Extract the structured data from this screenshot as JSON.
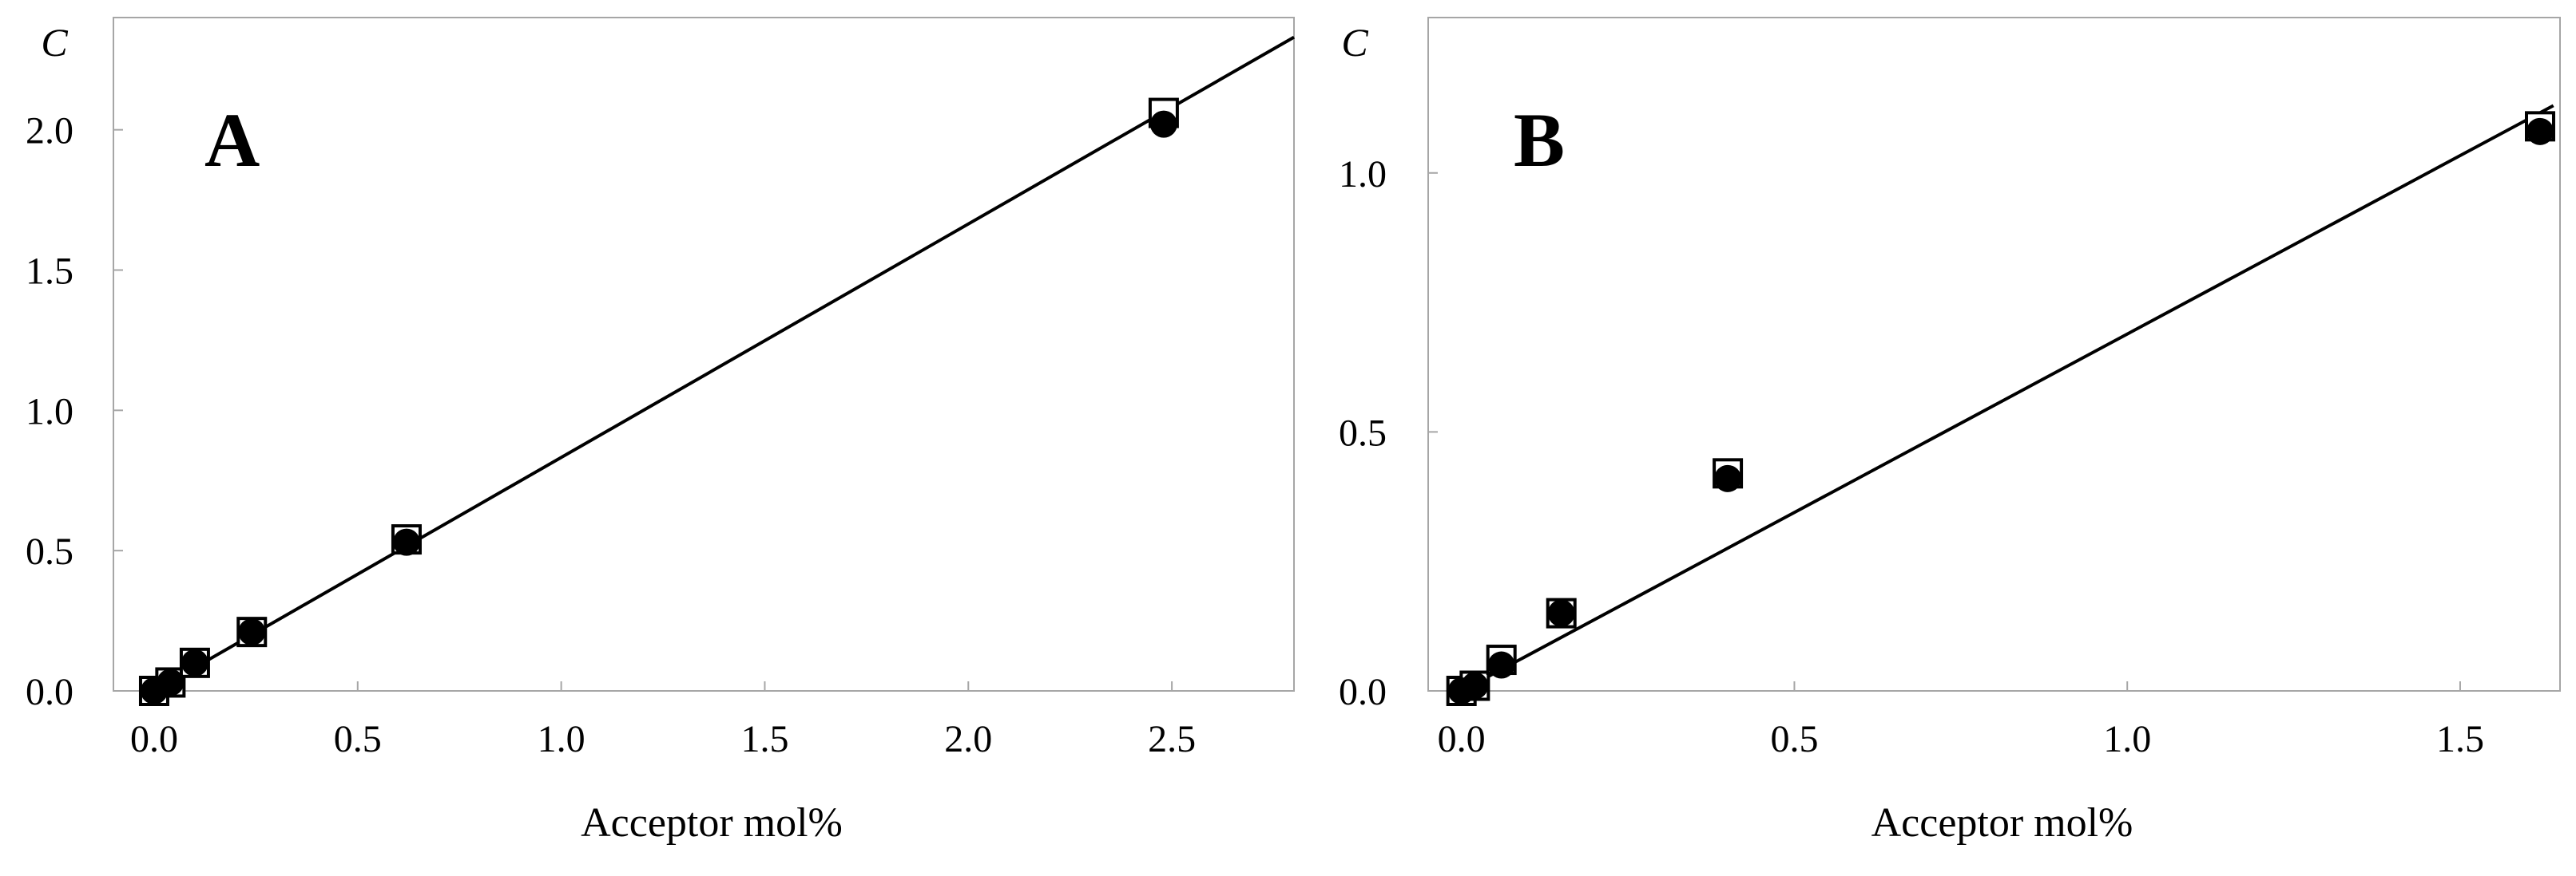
{
  "chart_data": [
    {
      "type": "scatter",
      "panel_label": "A",
      "xlabel": "Acceptor mol%",
      "ylabel": "C",
      "xlim": [
        -0.1,
        2.8
      ],
      "ylim": [
        0.0,
        2.4
      ],
      "x_ticks": [
        "0.0",
        "0.5",
        "1.0",
        "1.5",
        "2.0",
        "2.5"
      ],
      "x_tick_values": [
        0.0,
        0.5,
        1.0,
        1.5,
        2.0,
        2.5
      ],
      "y_ticks": [
        "0.0",
        "0.5",
        "1.0",
        "1.5",
        "2.0"
      ],
      "y_tick_values": [
        0.0,
        0.5,
        1.0,
        1.5,
        2.0
      ],
      "grid": false,
      "series": [
        {
          "marker": "open-square",
          "x": [
            0.0,
            0.04,
            0.1,
            0.24,
            0.62,
            2.48
          ],
          "y": [
            0.0,
            0.03,
            0.1,
            0.21,
            0.54,
            2.06
          ]
        },
        {
          "marker": "filled-circle",
          "x": [
            0.0,
            0.04,
            0.1,
            0.24,
            0.62,
            2.48
          ],
          "y": [
            0.0,
            0.03,
            0.1,
            0.21,
            0.53,
            2.02
          ]
        }
      ],
      "fit_line": {
        "x": [
          0.0,
          2.8
        ],
        "y": [
          0.0,
          2.33
        ]
      }
    },
    {
      "type": "scatter",
      "panel_label": "B",
      "xlabel": "Acceptor mol%",
      "ylabel": "C",
      "xlim": [
        -0.05,
        1.65
      ],
      "ylim": [
        0.0,
        1.3
      ],
      "x_ticks": [
        "0.0",
        "0.5",
        "1.0",
        "1.5"
      ],
      "x_tick_values": [
        0.0,
        0.5,
        1.0,
        1.5
      ],
      "y_ticks": [
        "0.0",
        "0.5",
        "1.0"
      ],
      "y_tick_values": [
        0.0,
        0.5,
        1.0
      ],
      "grid": false,
      "series": [
        {
          "marker": "open-square",
          "x": [
            0.0,
            0.02,
            0.06,
            0.15,
            0.4,
            1.62
          ],
          "y": [
            0.0,
            0.01,
            0.06,
            0.15,
            0.42,
            1.09
          ]
        },
        {
          "marker": "filled-circle",
          "x": [
            0.0,
            0.02,
            0.06,
            0.15,
            0.4,
            1.62
          ],
          "y": [
            0.0,
            0.01,
            0.05,
            0.15,
            0.41,
            1.08
          ]
        }
      ],
      "fit_line": {
        "x": [
          0.0,
          1.64
        ],
        "y": [
          0.0,
          1.13
        ]
      }
    }
  ]
}
